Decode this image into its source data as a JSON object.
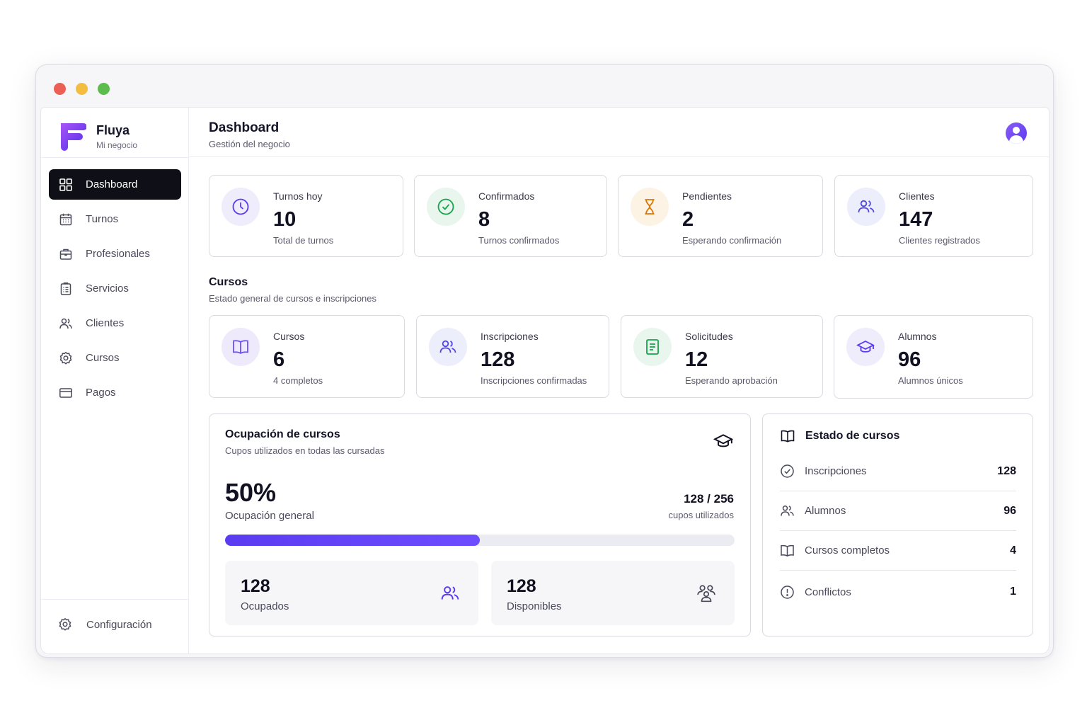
{
  "brand": {
    "name": "Fluya",
    "subtitle": "Mi negocio"
  },
  "sidebar": {
    "items": [
      {
        "label": "Dashboard",
        "icon": "grid-icon",
        "active": true
      },
      {
        "label": "Turnos",
        "icon": "calendar-icon"
      },
      {
        "label": "Profesionales",
        "icon": "briefcase-icon"
      },
      {
        "label": "Servicios",
        "icon": "clipboard-list-icon"
      },
      {
        "label": "Clientes",
        "icon": "users-icon"
      },
      {
        "label": "Cursos",
        "icon": "gear-badge-icon"
      },
      {
        "label": "Pagos",
        "icon": "credit-card-icon"
      }
    ],
    "footer": {
      "label": "Configuración",
      "icon": "settings-icon"
    }
  },
  "header": {
    "title": "Dashboard",
    "subtitle": "Gestión del negocio"
  },
  "stats": [
    {
      "label": "Turnos hoy",
      "value": "10",
      "sub": "Total de turnos",
      "icon": "clock-icon",
      "color": "#5b3bf0"
    },
    {
      "label": "Confirmados",
      "value": "8",
      "sub": "Turnos confirmados",
      "icon": "check-circle-icon",
      "color": "#16a34a"
    },
    {
      "label": "Pendientes",
      "value": "2",
      "sub": "Esperando confirmación",
      "icon": "hourglass-icon",
      "color": "#d97706"
    },
    {
      "label": "Clientes",
      "value": "147",
      "sub": "Clientes registrados",
      "icon": "users-icon",
      "color": "#4f46e5"
    }
  ],
  "courses_section": {
    "title": "Cursos",
    "subtitle": "Estado general de cursos e inscripciones"
  },
  "course_stats": [
    {
      "label": "Cursos",
      "value": "6",
      "sub": "4 completos",
      "icon": "book-open-icon",
      "color": "#6d4cff"
    },
    {
      "label": "Inscripciones",
      "value": "128",
      "sub": "Inscripciones confirmadas",
      "icon": "users-icon",
      "color": "#4f46e5"
    },
    {
      "label": "Solicitudes",
      "value": "12",
      "sub": "Esperando aprobación",
      "icon": "document-icon",
      "color": "#16a34a"
    },
    {
      "label": "Alumnos",
      "value": "96",
      "sub": "Alumnos únicos",
      "icon": "graduation-cap-icon",
      "color": "#5b3bf0"
    }
  ],
  "occupancy": {
    "title": "Ocupación de cursos",
    "subtitle": "Cupos utilizados en todas las cursadas",
    "percent_label": "50%",
    "percent_caption": "Ocupación general",
    "percent_value": 0.5,
    "ratio": "128 / 256",
    "ratio_caption": "cupos utilizados",
    "occupied": {
      "value": "128",
      "label": "Ocupados"
    },
    "available": {
      "value": "128",
      "label": "Disponibles"
    }
  },
  "course_status": {
    "title": "Estado de cursos",
    "rows": [
      {
        "label": "Inscripciones",
        "value": "128",
        "icon": "check-circle-icon"
      },
      {
        "label": "Alumnos",
        "value": "96",
        "icon": "users-icon"
      },
      {
        "label": "Cursos completos",
        "value": "4",
        "icon": "book-open-icon"
      },
      {
        "label": "Conflictos",
        "value": "1",
        "icon": "alert-circle-icon"
      }
    ]
  }
}
